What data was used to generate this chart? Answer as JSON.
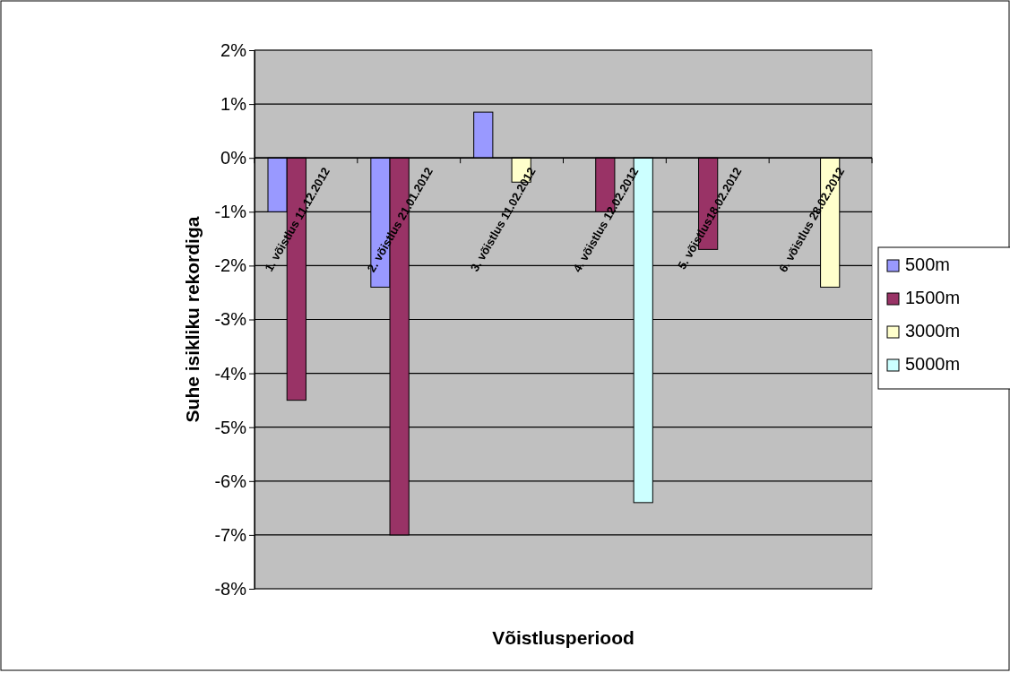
{
  "chart_data": {
    "type": "bar",
    "xlabel": "Võistlusperiood",
    "ylabel": "Suhe isikliku rekordiga",
    "categories": [
      "1. võistlus 11.12.2012",
      "2. võistlus 21.01.2012",
      "3. võistlus 11.02.2012",
      "4. võistlus 12.02.2012",
      "5. võistlus18.02.2012",
      "6. võistlus 28.02.2012"
    ],
    "series": [
      {
        "name": "500m",
        "color": "#9999ff",
        "values": [
          -1.0,
          -2.4,
          0.85,
          null,
          null,
          null
        ]
      },
      {
        "name": "1500m",
        "color": "#993366",
        "values": [
          -4.5,
          -7.0,
          null,
          -1.0,
          -1.7,
          null
        ]
      },
      {
        "name": "3000m",
        "color": "#ffffcc",
        "values": [
          null,
          null,
          -0.45,
          null,
          null,
          -2.4
        ]
      },
      {
        "name": "5000m",
        "color": "#ccffff",
        "values": [
          null,
          null,
          null,
          -6.4,
          null,
          null
        ]
      }
    ],
    "ylim": [
      -8,
      2
    ],
    "yticks": [
      {
        "value": -8,
        "label": "-8%"
      },
      {
        "value": -7,
        "label": "-7%"
      },
      {
        "value": -6,
        "label": "-6%"
      },
      {
        "value": -5,
        "label": "-5%"
      },
      {
        "value": -4,
        "label": "-4%"
      },
      {
        "value": -3,
        "label": "-3%"
      },
      {
        "value": -2,
        "label": "-2%"
      },
      {
        "value": -1,
        "label": "-1%"
      },
      {
        "value": 0,
        "label": "0%"
      },
      {
        "value": 1,
        "label": "1%"
      },
      {
        "value": 2,
        "label": "2%"
      }
    ],
    "grid": "y",
    "legend": "right"
  }
}
